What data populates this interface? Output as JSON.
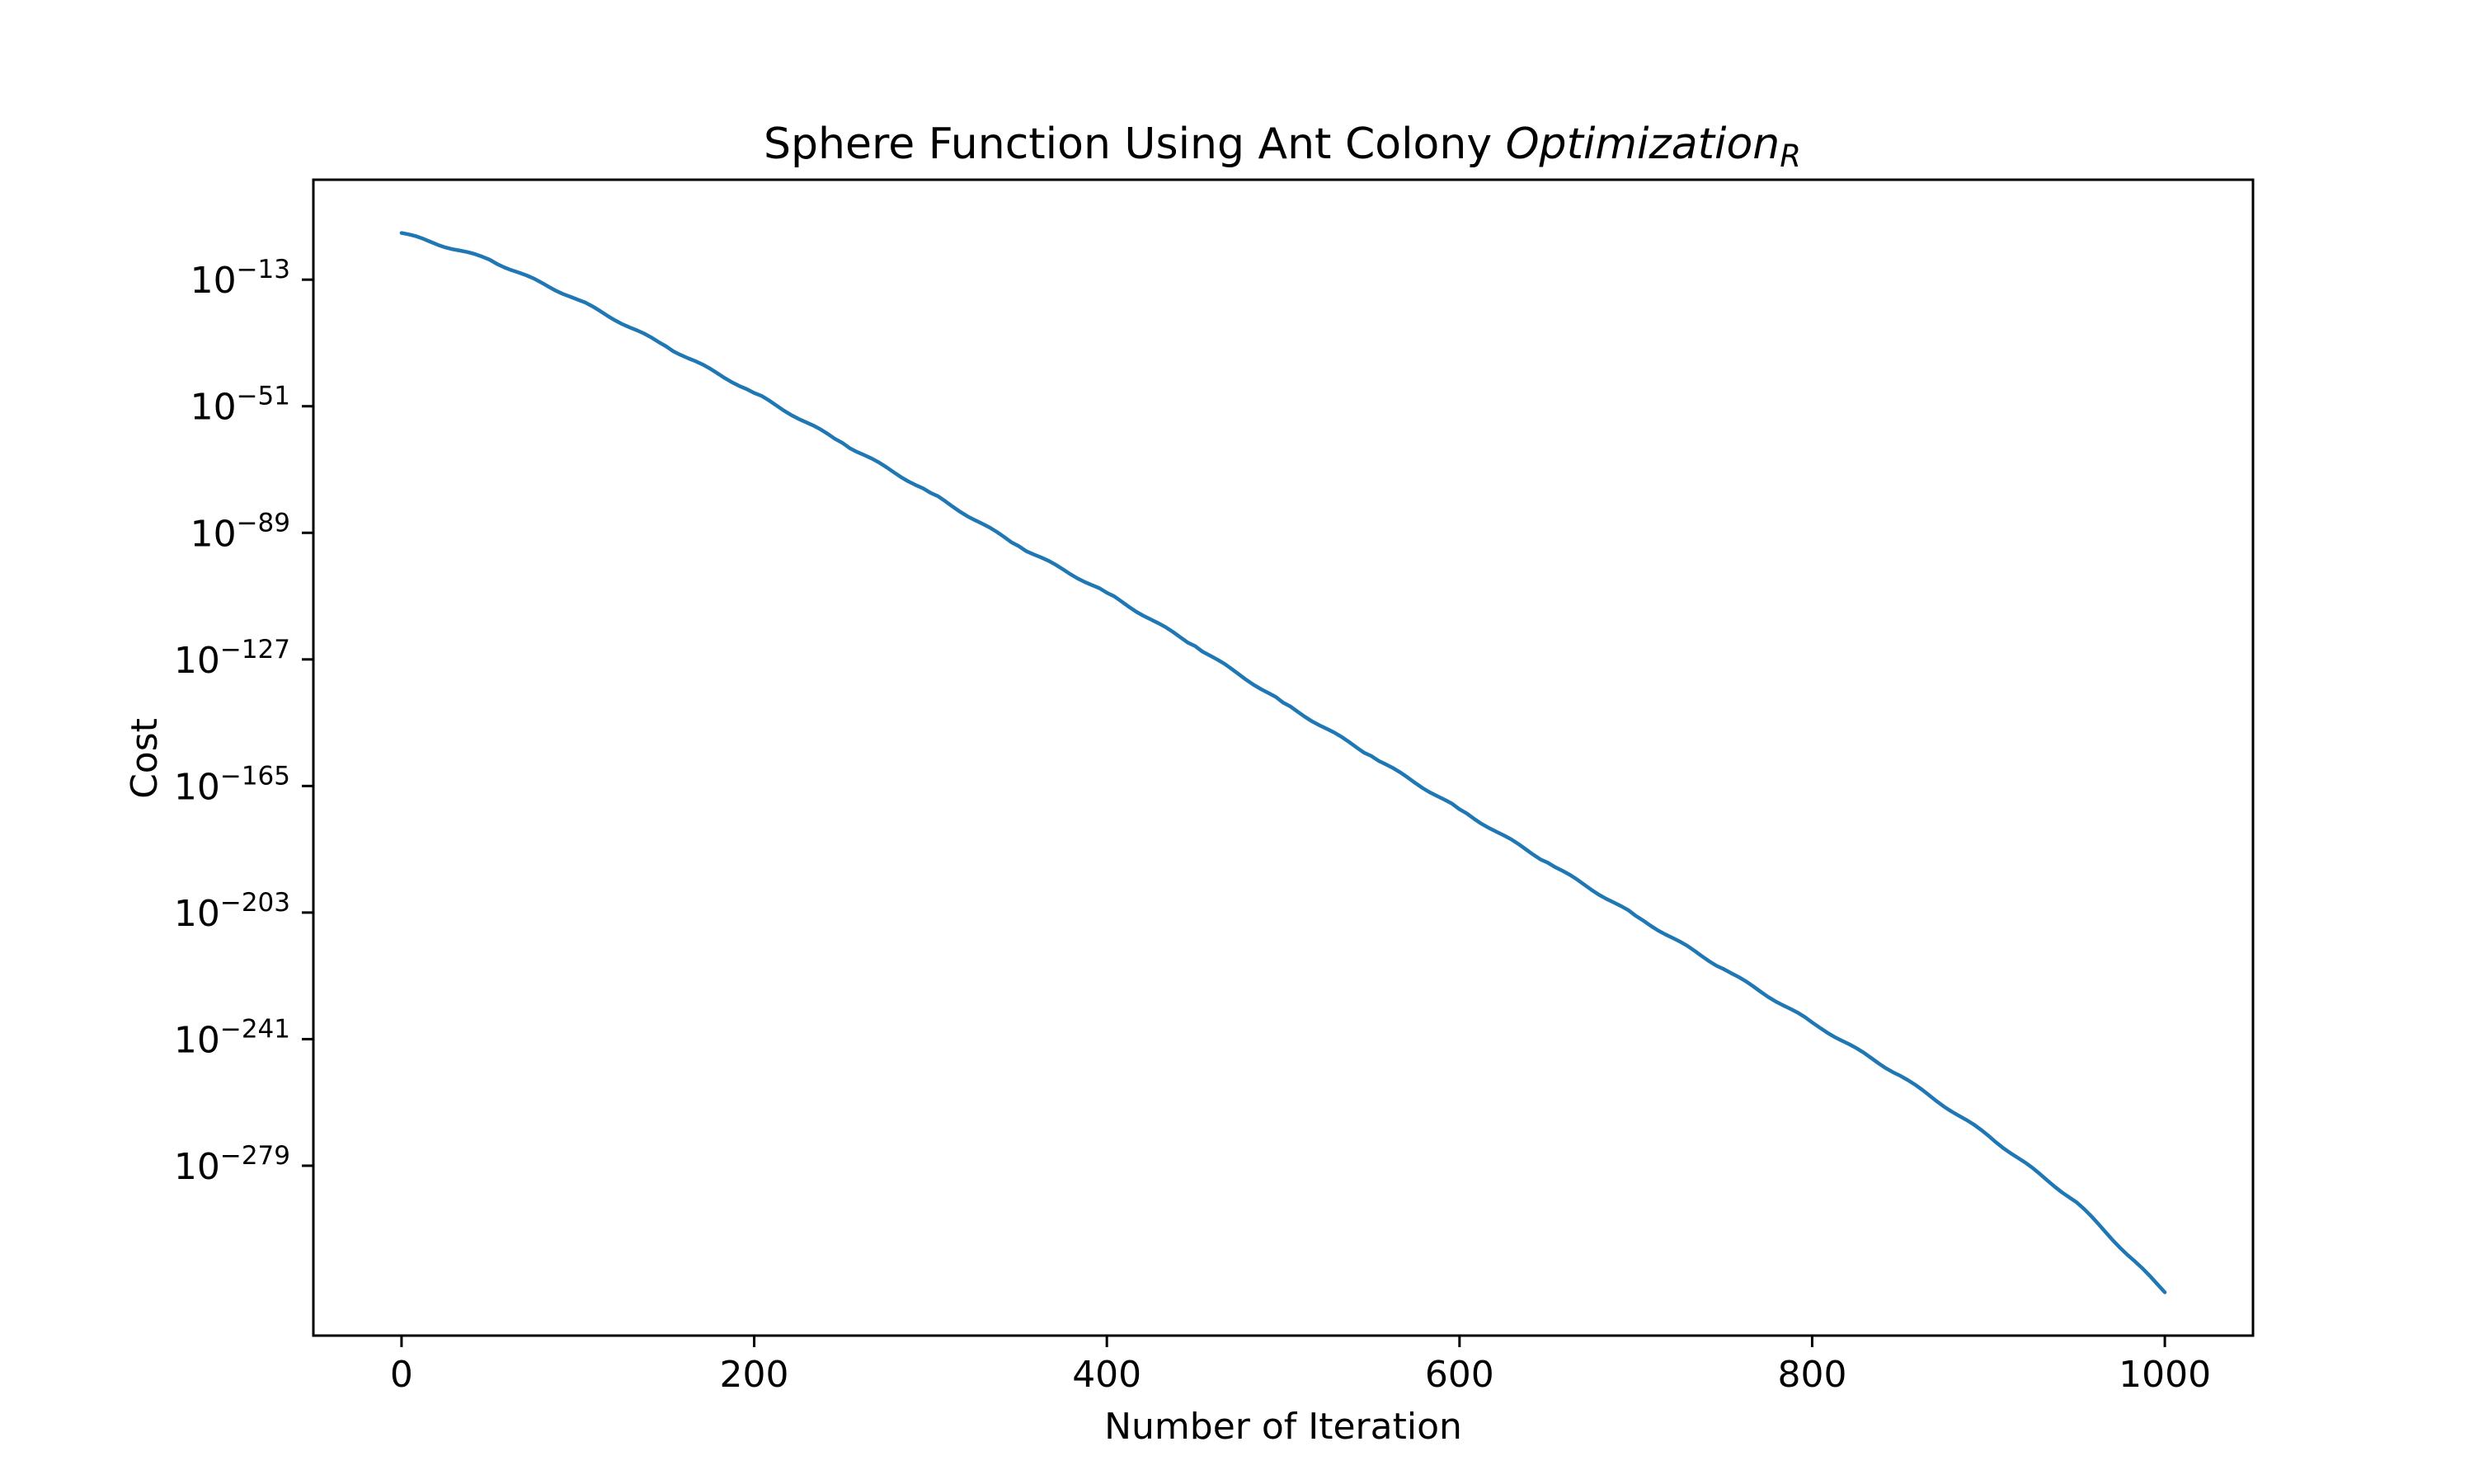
{
  "chart_data": {
    "type": "line",
    "title": {
      "main": "Sphere Function Using Ant Colony ",
      "italic": "Optimization",
      "subscript": "R"
    },
    "xlabel": "Number of Iteration",
    "ylabel": "Cost",
    "y_scale": "log10",
    "x_ticks": [
      "0",
      "200",
      "400",
      "600",
      "800",
      "1000"
    ],
    "y_tick_exponents": [
      "-13",
      "-51",
      "-89",
      "-127",
      "-165",
      "-203",
      "-241",
      "-279"
    ],
    "xlim": [
      -50,
      1050
    ],
    "ylim_log10": [
      -330,
      17
    ],
    "grid": false,
    "legend": "none",
    "series": [
      {
        "color": "#1f77b4",
        "x": [
          0,
          50,
          100,
          150,
          200,
          250,
          300,
          350,
          400,
          450,
          500,
          550,
          600,
          650,
          700,
          750,
          800,
          850,
          900,
          950,
          1000
        ],
        "log10_y": [
          1,
          -7,
          -19,
          -33,
          -47,
          -62,
          -77,
          -93,
          -107,
          -123,
          -140,
          -156,
          -172,
          -188,
          -204,
          -220,
          -236,
          -252,
          -270,
          -290,
          -317
        ]
      }
    ]
  }
}
